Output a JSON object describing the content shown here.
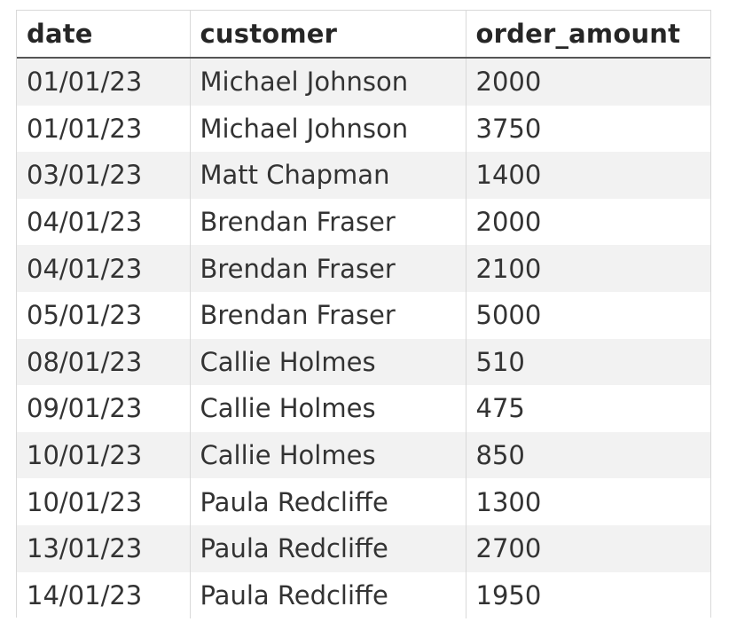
{
  "table": {
    "headers": [
      "date",
      "customer",
      "order_amount"
    ],
    "rows": [
      [
        "01/01/23",
        "Michael Johnson",
        "2000"
      ],
      [
        "01/01/23",
        "Michael Johnson",
        "3750"
      ],
      [
        "03/01/23",
        "Matt Chapman",
        "1400"
      ],
      [
        "04/01/23",
        "Brendan Fraser",
        "2000"
      ],
      [
        "04/01/23",
        "Brendan Fraser",
        "2100"
      ],
      [
        "05/01/23",
        "Brendan Fraser",
        "5000"
      ],
      [
        "08/01/23",
        "Callie Holmes",
        "510"
      ],
      [
        "09/01/23",
        "Callie Holmes",
        "475"
      ],
      [
        "10/01/23",
        "Callie Holmes",
        "850"
      ],
      [
        "10/01/23",
        "Paula Redcliffe",
        "1300"
      ],
      [
        "13/01/23",
        "Paula Redcliffe",
        "2700"
      ],
      [
        "14/01/23",
        "Paula Redcliffe",
        "1950"
      ]
    ]
  },
  "colors": {
    "stripe": "#f2f2f2",
    "header_rule": "#555555",
    "grid": "#d9d9d9"
  }
}
